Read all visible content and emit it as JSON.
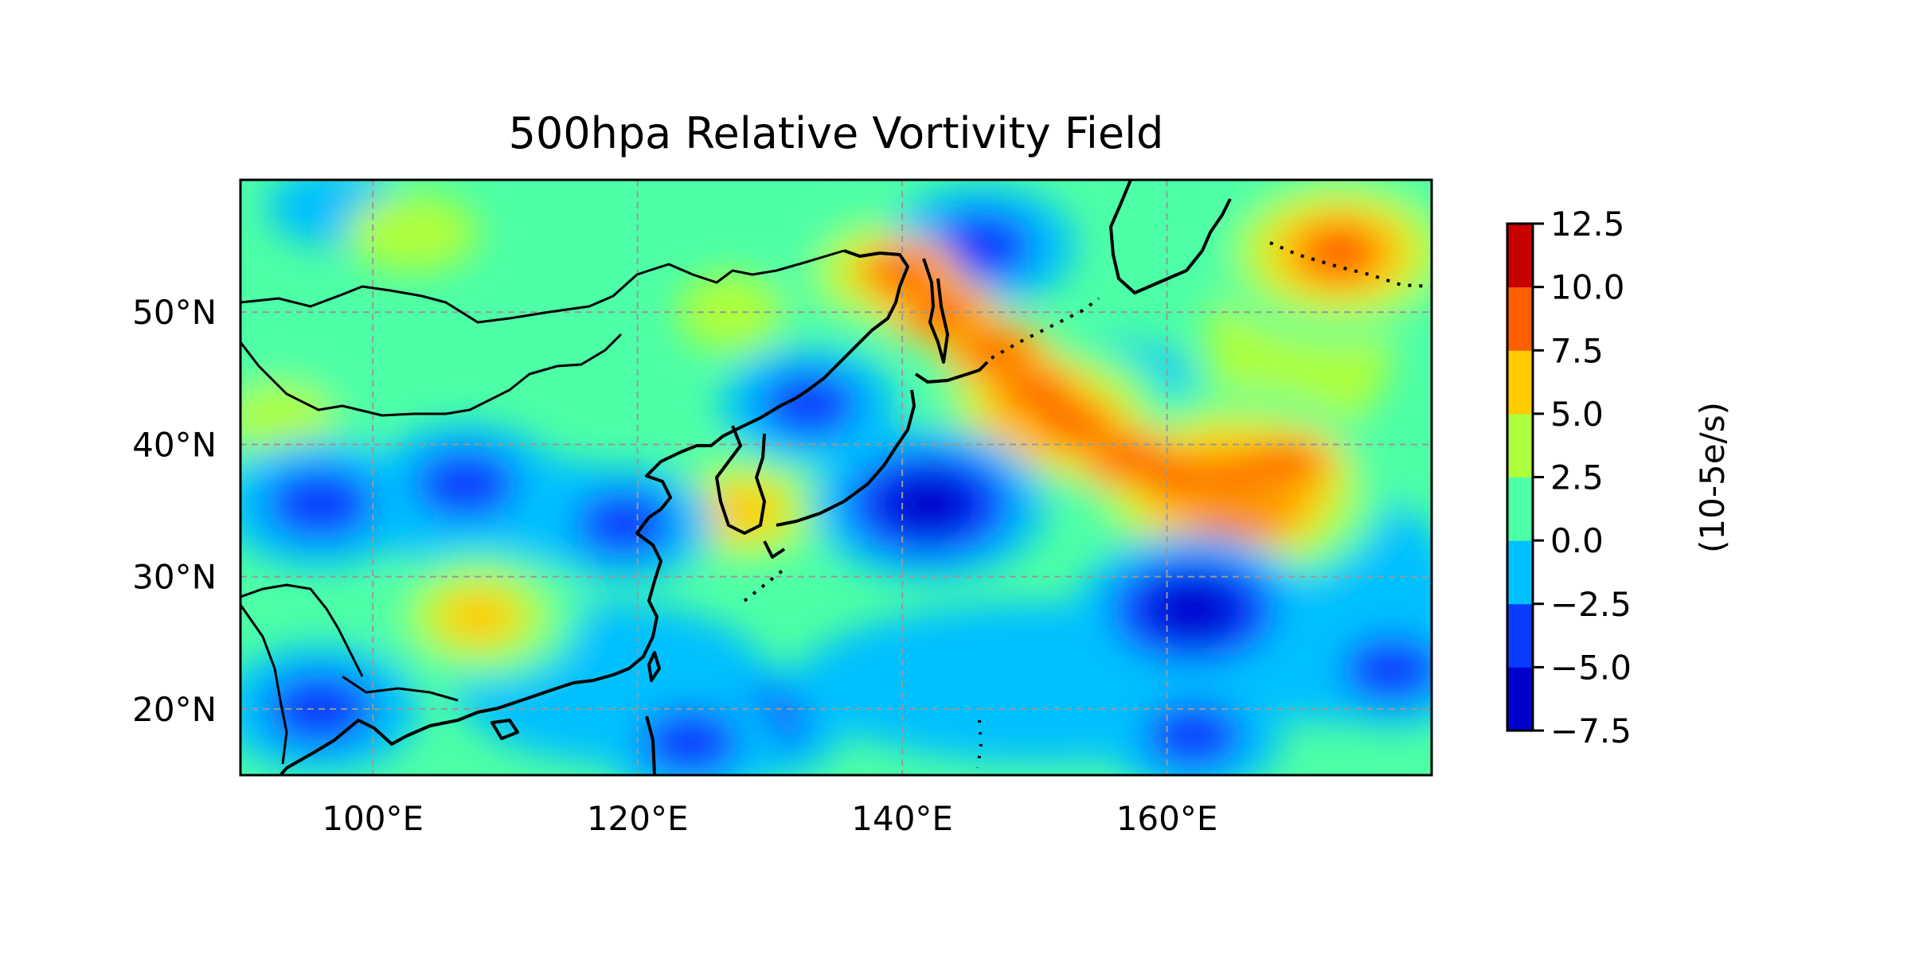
{
  "chart_data": {
    "type": "heatmap",
    "title": "500hpa Relative Vortivity Field",
    "x_tick_labels": [
      "100°E",
      "120°E",
      "140°E",
      "160°E"
    ],
    "x_tick_values": [
      100,
      120,
      140,
      160
    ],
    "y_tick_labels": [
      "50°N",
      "40°N",
      "30°N",
      "20°N"
    ],
    "y_tick_values": [
      50,
      40,
      30,
      20
    ],
    "xlim": [
      90,
      180
    ],
    "ylim": [
      15,
      60
    ],
    "grid": true,
    "colorbar": {
      "label": "(10-5e/s)",
      "tick_labels": [
        "12.5",
        "10.0",
        "7.5",
        "5.0",
        "2.5",
        "0.0",
        "−2.5",
        "−5.0",
        "−7.5"
      ],
      "levels": [
        -7.5,
        -5.0,
        -2.5,
        0.0,
        2.5,
        5.0,
        7.5,
        10.0,
        12.5
      ],
      "colors": [
        "#0000cc",
        "#0a3cff",
        "#00c0ff",
        "#4dffa6",
        "#adff3d",
        "#ffcc00",
        "#ff5e00",
        "#c80000"
      ]
    },
    "vorticity_centers": [
      {
        "lon": 165,
        "lat": 36.5,
        "value": 11
      },
      {
        "lon": 173,
        "lat": 54.5,
        "value": 9
      },
      {
        "lon": 151,
        "lat": 42,
        "value": 8
      },
      {
        "lon": 139,
        "lat": 53,
        "value": 6
      },
      {
        "lon": 108,
        "lat": 27,
        "value": 5.5
      },
      {
        "lon": 128,
        "lat": 35,
        "value": 5.5
      },
      {
        "lon": 93,
        "lat": 42,
        "value": 5
      },
      {
        "lon": 142,
        "lat": 35.5,
        "value": -7
      },
      {
        "lon": 162,
        "lat": 27.5,
        "value": -7
      },
      {
        "lon": 146,
        "lat": 55,
        "value": -4.5
      },
      {
        "lon": 96,
        "lat": 20,
        "value": -5
      },
      {
        "lon": 96,
        "lat": 35.5,
        "value": -5
      },
      {
        "lon": 107,
        "lat": 37,
        "value": -4.5
      },
      {
        "lon": 119,
        "lat": 34,
        "value": -4
      },
      {
        "lon": 133,
        "lat": 43,
        "value": -4
      },
      {
        "lon": 129,
        "lat": 19,
        "value": -4
      },
      {
        "lon": 124,
        "lat": 17.5,
        "value": -4
      },
      {
        "lon": 177,
        "lat": 23,
        "value": -4
      },
      {
        "lon": 162,
        "lat": 18,
        "value": -4
      }
    ]
  }
}
